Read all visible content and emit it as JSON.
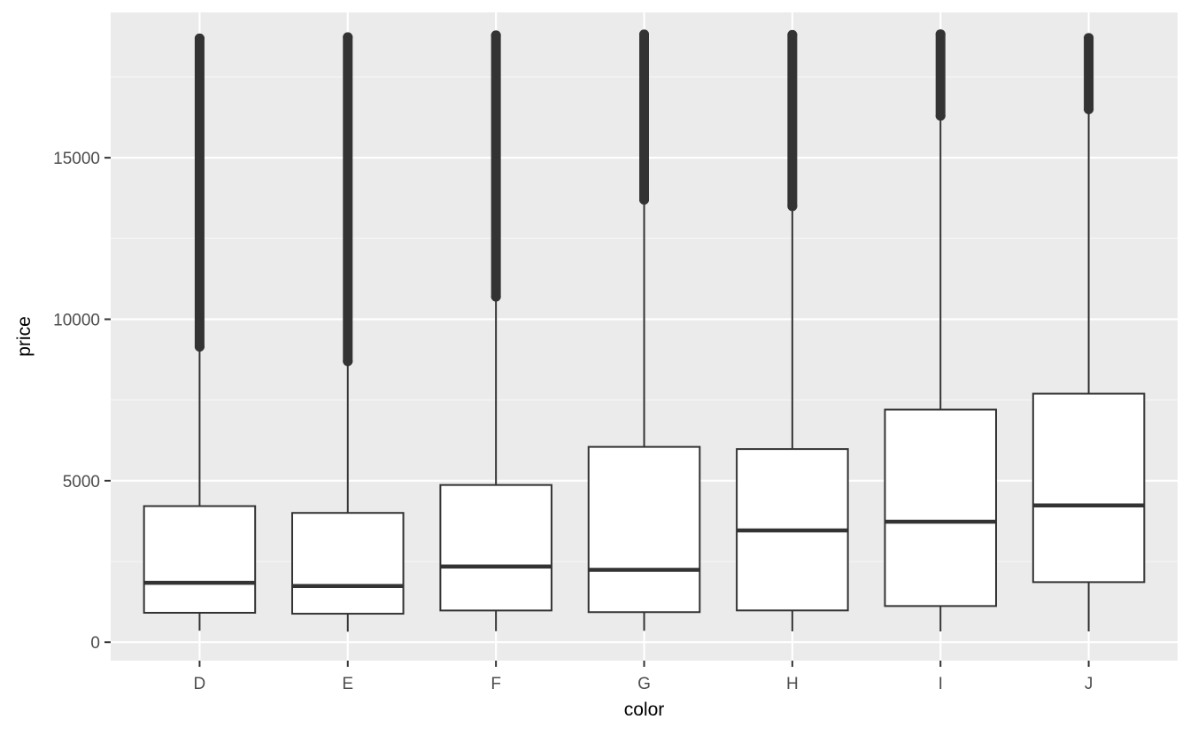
{
  "chart_data": {
    "type": "boxplot",
    "xlabel": "color",
    "ylabel": "price",
    "ylim": [
      -570,
      19500
    ],
    "y_ticks": [
      0,
      5000,
      10000,
      15000
    ],
    "y_tick_labels": [
      "0",
      "5000",
      "10000",
      "15000"
    ],
    "grid": true,
    "legend": "none",
    "categories": [
      "D",
      "E",
      "F",
      "G",
      "H",
      "I",
      "J"
    ],
    "boxes": [
      {
        "category": "D",
        "whisker_low": 357,
        "q1": 911,
        "median": 1838,
        "q3": 4214,
        "whisker_high": 9150,
        "outliers_from": 9150,
        "outliers_to": 18693
      },
      {
        "category": "E",
        "whisker_low": 326,
        "q1": 882,
        "median": 1739,
        "q3": 4003,
        "whisker_high": 8700,
        "outliers_from": 8700,
        "outliers_to": 18731
      },
      {
        "category": "F",
        "whisker_low": 342,
        "q1": 982,
        "median": 2344,
        "q3": 4868,
        "whisker_high": 10700,
        "outliers_from": 10700,
        "outliers_to": 18791
      },
      {
        "category": "G",
        "whisker_low": 354,
        "q1": 931,
        "median": 2242,
        "q3": 6048,
        "whisker_high": 13700,
        "outliers_from": 13700,
        "outliers_to": 18818
      },
      {
        "category": "H",
        "whisker_low": 337,
        "q1": 984,
        "median": 3460,
        "q3": 5980,
        "whisker_high": 13500,
        "outliers_from": 13500,
        "outliers_to": 18803
      },
      {
        "category": "I",
        "whisker_low": 334,
        "q1": 1120,
        "median": 3730,
        "q3": 7202,
        "whisker_high": 16300,
        "outliers_from": 16300,
        "outliers_to": 18823
      },
      {
        "category": "J",
        "whisker_low": 335,
        "q1": 1860,
        "median": 4234,
        "q3": 7695,
        "whisker_high": 16500,
        "outliers_from": 16500,
        "outliers_to": 18710
      }
    ]
  },
  "colors": {
    "panel_background": "#ebebeb",
    "grid_major": "#ffffff",
    "grid_minor": "#f5f5f5",
    "box_fill": "#ffffff",
    "box_line": "#333333",
    "outlier": "#333333",
    "tick_text": "#4d4d4d",
    "title_text": "#000000"
  }
}
